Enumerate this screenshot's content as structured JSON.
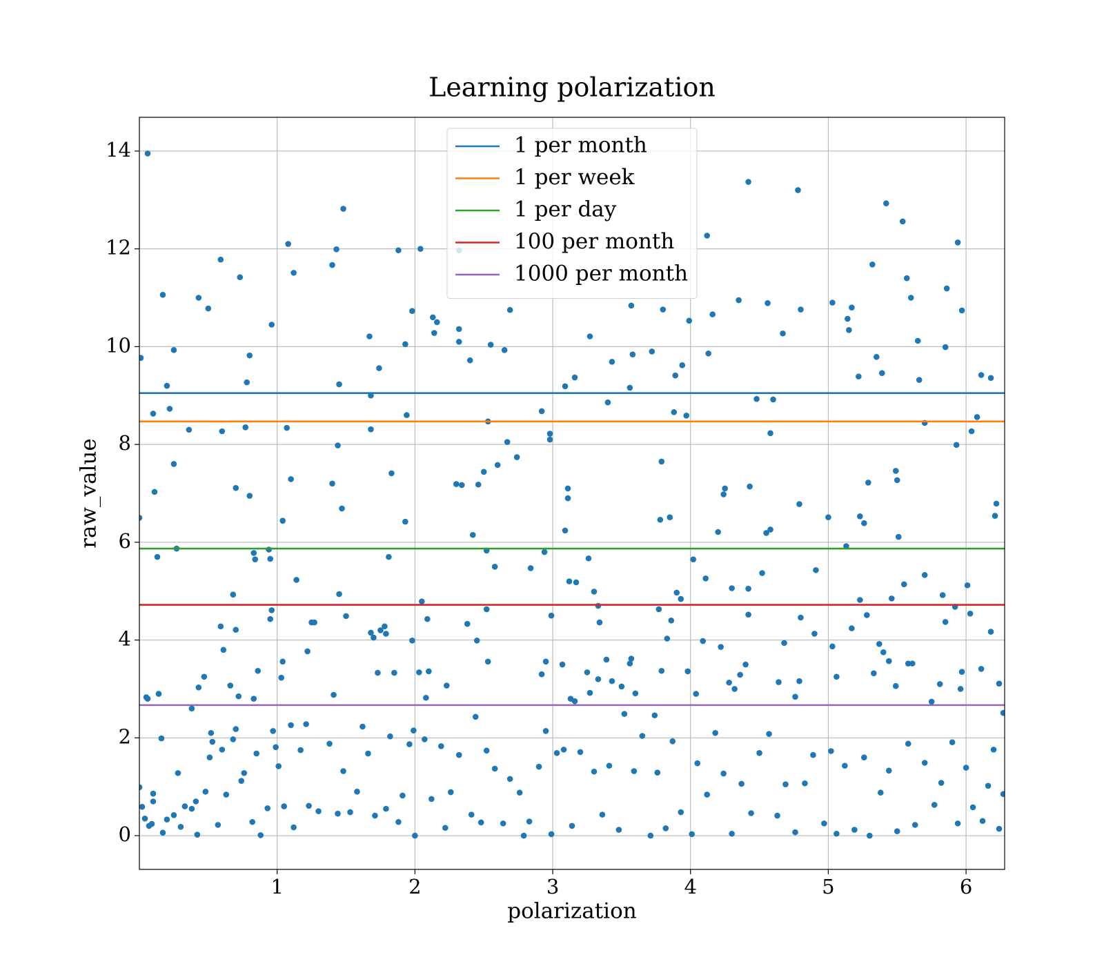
{
  "chart_data": {
    "type": "scatter",
    "title": "Learning polarization",
    "xlabel": "polarization",
    "ylabel": "raw_value",
    "xlim": [
      0,
      6.28
    ],
    "ylim": [
      -0.69,
      14.69
    ],
    "xticks": [
      1,
      2,
      3,
      4,
      5,
      6
    ],
    "yticks": [
      0,
      2,
      4,
      6,
      8,
      10,
      12,
      14
    ],
    "grid": true,
    "legend": "upper center",
    "series": [
      {
        "color": "#1f77b4",
        "x": [
          0.01,
          0.06,
          0.0,
          0.1,
          0.11,
          0.13,
          0.17,
          0.2,
          0.22,
          0.25,
          0.25,
          0.27,
          0.36,
          0.43,
          0.5,
          0.59,
          0.6,
          0.7,
          0.73,
          0.77,
          0.78,
          0.8,
          0.8,
          0.83,
          0.84,
          0.96,
          0.94,
          0.95,
          1.04,
          1.07,
          1.08,
          1.1,
          1.12,
          1.14,
          1.4,
          1.4,
          1.43,
          1.44,
          1.45,
          1.47,
          1.48,
          1.67,
          1.68,
          1.68,
          1.74,
          1.83,
          1.81,
          1.88,
          1.93,
          1.93,
          1.94,
          1.98,
          2.04,
          2.13,
          2.14,
          2.16,
          2.3,
          2.32,
          2.32,
          2.32,
          2.34,
          2.4,
          2.46,
          2.5,
          2.42,
          2.52,
          2.53,
          2.55,
          2.6,
          2.58,
          2.65,
          2.67,
          2.69,
          2.74,
          2.84,
          2.92,
          2.94,
          2.98,
          2.98,
          3.09,
          3.09,
          3.11,
          3.11,
          3.12,
          3.16,
          3.17,
          3.26,
          3.27,
          3.3,
          3.33,
          3.4,
          3.43,
          3.56,
          3.57,
          3.58,
          3.72,
          3.78,
          3.79,
          3.8,
          3.85,
          3.88,
          3.89,
          3.94,
          3.97,
          3.99,
          4.02,
          4.11,
          4.12,
          4.13,
          4.16,
          4.2,
          4.25,
          4.24,
          4.35,
          4.42,
          4.43,
          4.48,
          4.56,
          4.55,
          4.58,
          4.58,
          4.6,
          4.67,
          4.78,
          4.79,
          4.8,
          4.91,
          5.0,
          5.03,
          5.14,
          5.15,
          5.17,
          5.13,
          5.22,
          5.23,
          5.26,
          5.29,
          5.32,
          5.35,
          5.39,
          5.42,
          5.49,
          5.5,
          5.51,
          5.54,
          5.57,
          5.6,
          5.65,
          5.66,
          5.7,
          5.85,
          5.86,
          5.93,
          5.94,
          5.97,
          6.04,
          6.08,
          6.11,
          6.18,
          6.21,
          6.22,
          0.05,
          0.06,
          0.14,
          0.38,
          0.43,
          0.47,
          0.59,
          0.61,
          0.66,
          0.68,
          0.7,
          0.72,
          0.86,
          0.83,
          0.96,
          0.95,
          1.03,
          1.04,
          1.22,
          1.25,
          1.27,
          1.41,
          1.45,
          1.5,
          1.68,
          1.7,
          1.73,
          1.75,
          1.78,
          1.79,
          1.85,
          1.98,
          2.03,
          2.05,
          2.09,
          2.1,
          2.08,
          2.23,
          2.38,
          2.45,
          2.52,
          2.53,
          2.92,
          2.95,
          2.99,
          3.07,
          3.13,
          3.16,
          3.25,
          3.34,
          3.33,
          3.39,
          3.43,
          3.5,
          3.56,
          3.57,
          3.6,
          3.74,
          3.77,
          3.79,
          3.83,
          3.86,
          3.9,
          3.93,
          3.98,
          4.04,
          4.09,
          4.22,
          4.28,
          4.3,
          4.32,
          4.36,
          4.4,
          4.42,
          4.42,
          4.52,
          4.64,
          4.68,
          4.76,
          4.79,
          4.8,
          4.9,
          5.03,
          5.06,
          5.17,
          5.23,
          5.28,
          5.33,
          5.37,
          5.4,
          5.44,
          5.46,
          5.49,
          5.55,
          5.58,
          5.61,
          5.7,
          5.75,
          5.81,
          5.83,
          5.85,
          5.92,
          5.96,
          5.97,
          6.01,
          6.03,
          6.11,
          6.18,
          6.24,
          0.0,
          0.02,
          0.04,
          0.07,
          0.09,
          0.1,
          0.1,
          0.16,
          0.17,
          0.2,
          0.25,
          0.28,
          0.3,
          0.33,
          0.38,
          0.41,
          0.42,
          0.48,
          0.51,
          0.52,
          0.53,
          0.57,
          0.6,
          0.63,
          0.68,
          0.7,
          0.74,
          0.76,
          0.82,
          0.85,
          0.88,
          0.93,
          0.97,
          0.99,
          1.01,
          1.05,
          1.1,
          1.12,
          1.17,
          1.21,
          1.23,
          1.3,
          1.38,
          1.44,
          1.48,
          1.53,
          1.58,
          1.62,
          1.66,
          1.71,
          1.79,
          1.82,
          1.88,
          1.91,
          1.96,
          1.99,
          2.0,
          2.07,
          2.12,
          2.19,
          2.22,
          2.26,
          2.32,
          2.41,
          2.44,
          2.48,
          2.52,
          2.58,
          2.64,
          2.69,
          2.76,
          2.79,
          2.83,
          2.9,
          2.95,
          2.99,
          3.03,
          3.08,
          3.14,
          3.2,
          3.27,
          3.3,
          3.36,
          3.41,
          3.48,
          3.52,
          3.59,
          3.65,
          3.71,
          3.76,
          3.82,
          3.87,
          3.93,
          4.01,
          4.05,
          4.12,
          4.18,
          4.24,
          4.3,
          4.37,
          4.44,
          4.5,
          4.57,
          4.63,
          4.69,
          4.76,
          4.83,
          4.89,
          4.97,
          5.02,
          5.06,
          5.12,
          5.19,
          5.26,
          5.3,
          5.38,
          5.44,
          5.5,
          5.58,
          5.63,
          5.7,
          5.77,
          5.82,
          5.9,
          5.94,
          6.0,
          6.05,
          6.12,
          6.16,
          6.2,
          6.24,
          6.27,
          6.27
        ],
        "y": [
          9.77,
          13.95,
          6.5,
          8.63,
          7.03,
          5.7,
          11.06,
          9.2,
          8.73,
          7.6,
          9.93,
          5.87,
          8.3,
          11.0,
          10.78,
          11.78,
          8.27,
          7.11,
          11.42,
          8.35,
          9.27,
          6.95,
          9.82,
          5.78,
          5.65,
          10.45,
          5.85,
          5.66,
          6.44,
          8.34,
          12.1,
          7.29,
          11.51,
          5.23,
          11.67,
          7.2,
          11.99,
          7.98,
          9.23,
          6.69,
          12.82,
          10.21,
          8.31,
          9.0,
          9.56,
          7.41,
          5.7,
          11.97,
          10.05,
          6.42,
          8.6,
          10.73,
          12.0,
          10.6,
          10.28,
          10.5,
          7.19,
          11.97,
          10.36,
          10.1,
          7.17,
          9.72,
          7.18,
          7.44,
          6.15,
          5.83,
          8.47,
          10.04,
          7.58,
          5.5,
          9.93,
          8.05,
          10.75,
          7.74,
          5.47,
          8.68,
          5.8,
          8.1,
          8.22,
          6.24,
          9.19,
          7.1,
          6.9,
          5.2,
          9.37,
          5.18,
          5.67,
          10.21,
          4.99,
          4.7,
          8.86,
          9.69,
          9.16,
          10.84,
          9.84,
          9.9,
          6.46,
          7.65,
          10.76,
          6.51,
          8.66,
          9.41,
          9.62,
          8.59,
          10.53,
          5.65,
          5.26,
          12.27,
          9.86,
          10.66,
          6.21,
          7.1,
          6.98,
          10.95,
          13.37,
          7.14,
          8.93,
          10.89,
          6.19,
          6.26,
          8.23,
          8.92,
          10.27,
          13.2,
          6.78,
          10.76,
          5.43,
          6.51,
          10.9,
          10.57,
          10.34,
          10.8,
          5.92,
          9.39,
          6.53,
          6.39,
          7.22,
          11.68,
          9.79,
          9.46,
          12.93,
          7.46,
          7.27,
          6.11,
          12.56,
          11.4,
          11.0,
          10.12,
          9.32,
          8.44,
          9.99,
          11.19,
          7.99,
          12.13,
          10.74,
          8.27,
          8.56,
          9.42,
          9.36,
          6.54,
          6.79,
          2.83,
          2.8,
          2.9,
          2.6,
          3.03,
          3.25,
          4.28,
          3.8,
          3.07,
          4.93,
          4.21,
          2.85,
          3.37,
          2.8,
          4.61,
          4.43,
          3.23,
          3.56,
          3.77,
          4.36,
          4.36,
          2.88,
          4.94,
          4.49,
          4.15,
          4.05,
          3.33,
          4.2,
          4.28,
          4.13,
          3.33,
          3.99,
          3.34,
          4.79,
          4.43,
          3.36,
          2.82,
          3.07,
          4.33,
          3.99,
          4.63,
          3.56,
          3.3,
          3.56,
          4.5,
          3.5,
          2.8,
          2.75,
          3.34,
          4.36,
          3.2,
          3.6,
          3.16,
          3.05,
          3.52,
          3.62,
          2.91,
          2.46,
          4.63,
          3.37,
          4.03,
          4.4,
          4.97,
          4.84,
          3.36,
          2.9,
          3.98,
          3.86,
          3.13,
          5.06,
          3.0,
          3.29,
          3.5,
          5.05,
          4.52,
          5.37,
          3.14,
          3.94,
          2.84,
          3.16,
          4.46,
          4.13,
          3.87,
          3.25,
          4.24,
          4.82,
          4.51,
          3.32,
          3.92,
          3.75,
          3.57,
          4.85,
          3.06,
          5.14,
          3.52,
          3.52,
          5.33,
          2.74,
          3.1,
          4.92,
          4.37,
          4.68,
          3.0,
          3.35,
          5.12,
          4.54,
          3.41,
          4.17,
          3.11,
          0.99,
          0.59,
          0.35,
          0.2,
          0.24,
          0.7,
          0.86,
          1.99,
          0.06,
          0.33,
          0.42,
          1.28,
          0.18,
          0.6,
          0.55,
          0.7,
          0.02,
          0.9,
          1.6,
          2.1,
          1.92,
          0.22,
          1.76,
          0.84,
          1.97,
          2.18,
          1.12,
          1.28,
          0.28,
          1.68,
          0.01,
          0.56,
          2.14,
          1.81,
          1.42,
          0.6,
          2.26,
          0.17,
          1.75,
          2.28,
          0.61,
          0.5,
          1.88,
          0.45,
          1.32,
          0.48,
          0.9,
          2.23,
          1.68,
          0.41,
          0.55,
          2.03,
          0.28,
          0.82,
          1.87,
          2.15,
          0.0,
          1.97,
          0.75,
          1.83,
          0.16,
          0.89,
          1.65,
          0.43,
          2.43,
          0.27,
          1.74,
          1.37,
          0.25,
          1.16,
          0.88,
          0.0,
          0.29,
          1.41,
          2.14,
          0.03,
          1.69,
          1.76,
          0.2,
          1.71,
          2.92,
          1.31,
          0.43,
          1.43,
          0.12,
          2.49,
          1.32,
          2.04,
          0.0,
          1.29,
          0.15,
          1.93,
          0.48,
          0.03,
          1.48,
          0.84,
          2.1,
          1.27,
          0.04,
          1.06,
          0.46,
          1.69,
          2.08,
          0.41,
          1.05,
          0.07,
          1.07,
          1.65,
          0.25,
          1.73,
          0.04,
          1.43,
          0.12,
          1.6,
          0.0,
          0.88,
          1.33,
          0.09,
          1.88,
          0.22,
          1.49,
          0.63,
          1.08,
          1.91,
          0.25,
          1.39,
          0.58,
          0.3,
          1.02,
          1.76,
          0.14,
          0.85,
          2.51
        ]
      }
    ],
    "hlines": [
      {
        "name": "1 per month",
        "color": "#1f77b4",
        "value": 9.05
      },
      {
        "name": "1 per week",
        "color": "#ff7f0e",
        "value": 8.47
      },
      {
        "name": "1 per day",
        "color": "#2ca02c",
        "value": 5.87
      },
      {
        "name": "100 per month",
        "color": "#d62728",
        "value": 4.72
      },
      {
        "name": "1000 per month",
        "color": "#9467bd",
        "value": 2.67
      }
    ]
  }
}
